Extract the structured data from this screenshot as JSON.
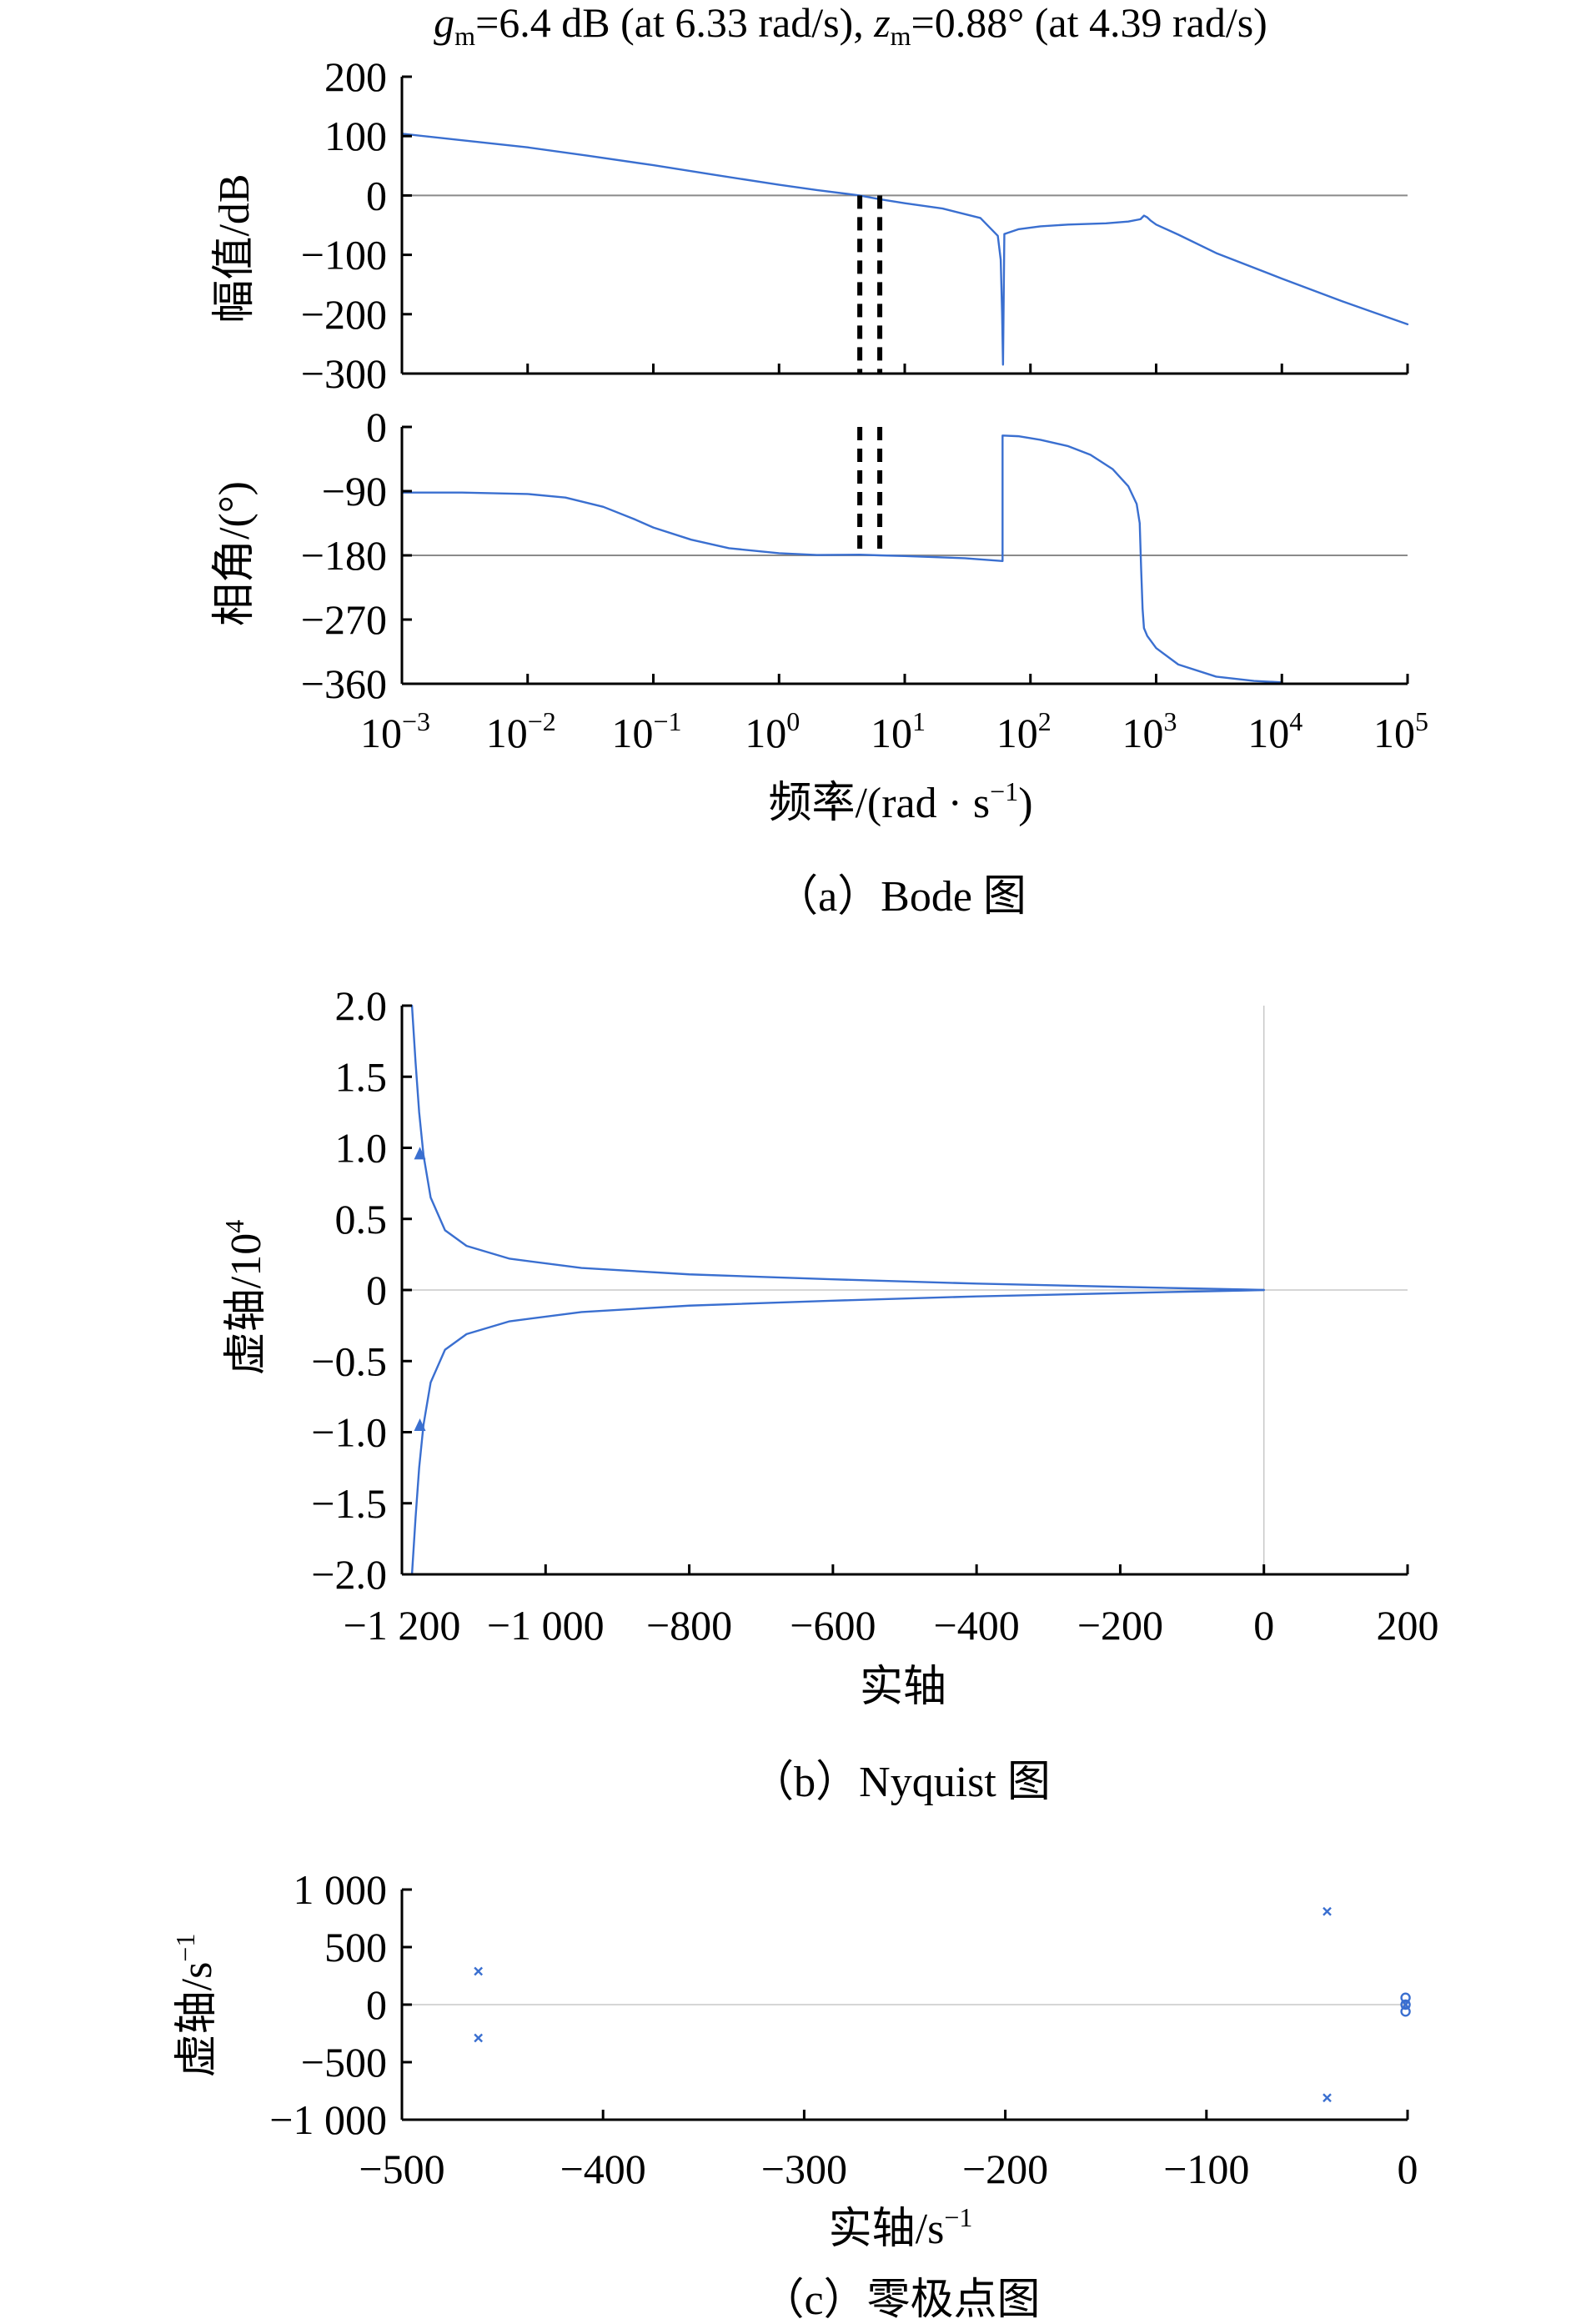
{
  "colors": {
    "curve": "#3a6fd0",
    "axis": "#000000",
    "reference": "#8a8a8a",
    "margin_line": "#000000"
  },
  "chart_data": [
    {
      "id": "bode",
      "type": "line",
      "title_parts": [
        "g",
        "m",
        "=6.4 dB (at 6.33 rad/s), ",
        "z",
        "m",
        "=0.88° (at 4.39 rad/s)"
      ],
      "caption": "（a）Bode 图",
      "xlabel": "频率/(rad · s",
      "xlabel_sup": "−1",
      "xlabel_end": ")",
      "xscale": "log",
      "xlim": [
        0.001,
        100000
      ],
      "xticks": [
        {
          "value": 0.001,
          "base": "10",
          "exp": "−3"
        },
        {
          "value": 0.01,
          "base": "10",
          "exp": "−2"
        },
        {
          "value": 0.1,
          "base": "10",
          "exp": "−1"
        },
        {
          "value": 1,
          "base": "10",
          "exp": "0"
        },
        {
          "value": 10,
          "base": "10",
          "exp": "1"
        },
        {
          "value": 100,
          "base": "10",
          "exp": "2"
        },
        {
          "value": 1000,
          "base": "10",
          "exp": "3"
        },
        {
          "value": 10000,
          "base": "10",
          "exp": "4"
        },
        {
          "value": 100000,
          "base": "10",
          "exp": "5"
        }
      ],
      "margin_frequencies": [
        4.39,
        6.33
      ],
      "magnitude": {
        "ylabel": "幅值/dB",
        "ylim": [
          -300,
          200
        ],
        "yticks": [
          200,
          100,
          0,
          -100,
          -200,
          -300
        ],
        "ytick_labels": [
          "200",
          "100",
          "0",
          "−100",
          "−200",
          "−300"
        ],
        "reference_y": 0,
        "series": [
          {
            "x": [
              0.001,
              0.003,
              0.01,
              0.03,
              0.1,
              0.3,
              1,
              2,
              4.39,
              6.33,
              10,
              20,
              40,
              55,
              58,
              59.5,
              60.5,
              62,
              66,
              80,
              120,
              200,
              400,
              600,
              750,
              800,
              850,
              900,
              1000,
              1500,
              3000,
              10000,
              30000,
              100000
            ],
            "y": [
              104,
              93,
              81,
              67,
              51,
              35,
              18,
              9,
              0,
              -6.4,
              -13,
              -22,
              -38,
              -68,
              -108,
              -198,
              -285,
              -65,
              -63,
              -57,
              -52,
              -49,
              -47,
              -44,
              -40,
              -34,
              -37,
              -42,
              -49,
              -66,
              -97,
              -140,
              -178,
              -217
            ]
          }
        ]
      },
      "phase": {
        "ylabel": "相角/(°)",
        "ylim": [
          -360,
          0
        ],
        "yticks": [
          0,
          -90,
          -180,
          -270,
          -360
        ],
        "ytick_labels": [
          "0",
          "−90",
          "−180",
          "−270",
          "−360"
        ],
        "reference_y": -180,
        "series": [
          {
            "x": [
              0.001,
              0.003,
              0.01,
              0.02,
              0.04,
              0.07,
              0.1,
              0.2,
              0.4,
              1,
              2,
              4.39,
              6.33,
              10,
              30,
              60,
              60.001,
              80,
              120,
              200,
              300,
              450,
              600,
              700,
              740,
              760,
              780,
              800,
              850,
              1000,
              1500,
              3000,
              6000,
              10000
            ],
            "y": [
              -92,
              -92,
              -94,
              -99,
              -112,
              -129,
              -141,
              -158,
              -170,
              -177,
              -179.5,
              -179.1,
              -180,
              -181,
              -184,
              -188,
              -12,
              -13,
              -18,
              -27,
              -39,
              -59,
              -83,
              -108,
              -135,
              -200,
              -255,
              -282,
              -293,
              -310,
              -333,
              -350,
              -356,
              -358
            ]
          }
        ]
      }
    },
    {
      "id": "nyquist",
      "type": "line",
      "caption": "（b）Nyquist 图",
      "xlabel": "实轴",
      "ylabel_main": "虚轴/10",
      "ylabel_sup": "4",
      "xlim": [
        -1200,
        200
      ],
      "ylim": [
        -2.0,
        2.0
      ],
      "xticks": [
        -1200,
        -1000,
        -800,
        -600,
        -400,
        -200,
        0,
        200
      ],
      "xtick_labels": [
        "−1 200",
        "−1 000",
        "−800",
        "−600",
        "−400",
        "−200",
        "0",
        "200"
      ],
      "yticks": [
        2.0,
        1.5,
        1.0,
        0.5,
        0,
        -0.5,
        -1.0,
        -1.5,
        -2.0
      ],
      "ytick_labels": [
        "2.0",
        "1.5",
        "1.0",
        "0.5",
        "0",
        "−0.5",
        "−1.0",
        "−1.5",
        "−2.0"
      ],
      "series": [
        {
          "name": "",
          "x": [
            -1186,
            -1181,
            -1176,
            -1170,
            -1160,
            -1140,
            -1110,
            -1050,
            -950,
            -800,
            -600,
            -400,
            -200,
            -100,
            -30,
            0
          ],
          "y": [
            2.0,
            1.6,
            1.25,
            0.95,
            0.65,
            0.42,
            0.31,
            0.22,
            0.155,
            0.11,
            0.075,
            0.045,
            0.022,
            0.011,
            0.004,
            0
          ]
        },
        {
          "name": "",
          "x": [
            -1186,
            -1181,
            -1176,
            -1170,
            -1160,
            -1140,
            -1110,
            -1050,
            -950,
            -800,
            -600,
            -400,
            -200,
            -100,
            -30,
            0
          ],
          "y": [
            -2.0,
            -1.6,
            -1.25,
            -0.95,
            -0.65,
            -0.42,
            -0.31,
            -0.22,
            -0.155,
            -0.11,
            -0.075,
            -0.045,
            -0.022,
            -0.011,
            -0.004,
            0
          ]
        }
      ],
      "arrows": [
        {
          "x": -1175,
          "y": 0.96
        },
        {
          "x": -1175,
          "y": -0.95
        }
      ]
    },
    {
      "id": "pzmap",
      "type": "scatter",
      "caption": "（c）零极点图",
      "xlabel": "实轴/s",
      "xlabel_sup": "−1",
      "ylabel": "虚轴/s",
      "ylabel_sup": "−1",
      "xlim": [
        -500,
        0
      ],
      "ylim": [
        -1000,
        1000
      ],
      "xticks": [
        -500,
        -400,
        -300,
        -200,
        -100,
        0
      ],
      "xtick_labels": [
        "−500",
        "−400",
        "−300",
        "−200",
        "−100",
        "0"
      ],
      "yticks": [
        1000,
        500,
        0,
        -500,
        -1000
      ],
      "ytick_labels": [
        "1 000",
        "500",
        "0",
        "−500",
        "−1 000"
      ],
      "poles": [
        {
          "x": -462,
          "y": 290
        },
        {
          "x": -462,
          "y": -290
        },
        {
          "x": -40,
          "y": 810
        },
        {
          "x": -40,
          "y": -810
        },
        {
          "x": -1,
          "y": 0
        }
      ],
      "zeros": [
        {
          "x": -1,
          "y": 60
        },
        {
          "x": -1,
          "y": -60
        },
        {
          "x": -1,
          "y": 0
        }
      ]
    }
  ]
}
